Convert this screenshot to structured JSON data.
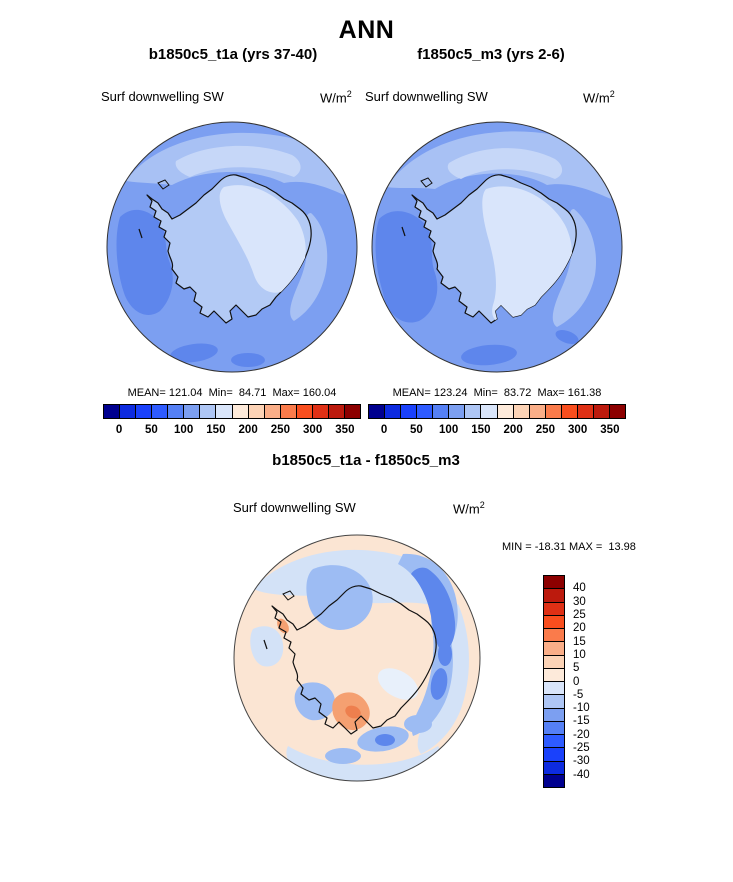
{
  "header": {
    "title": "ANN"
  },
  "units": {
    "base": "W/m",
    "sup": "2"
  },
  "panels": [
    {
      "title": "b1850c5_t1a (yrs 37-40)",
      "field_label": "Surf downwelling SW",
      "stats_text": "MEAN= 121.04  Min=  84.71  Max= 160.04",
      "stats": {
        "mean": 121.04,
        "min": 84.71,
        "max": 160.04
      }
    },
    {
      "title": "f1850c5_m3 (yrs 2-6)",
      "field_label": "Surf downwelling SW",
      "stats_text": "MEAN= 123.24  Min=  83.72  Max= 161.38",
      "stats": {
        "mean": 123.24,
        "min": 83.72,
        "max": 161.38
      }
    }
  ],
  "difference": {
    "title": "b1850c5_t1a - f1850c5_m3",
    "field_label": "Surf downwelling SW",
    "minmax_text": "MIN = -18.31 MAX =  13.98",
    "stats": {
      "min": -18.31,
      "max": 13.98
    }
  },
  "palettes": {
    "sw": [
      "#00008f",
      "#0d2be0",
      "#1a41fb",
      "#2e5bff",
      "#5580f5",
      "#7c9ff1",
      "#aec6f5",
      "#d9e5fa",
      "#fdeada",
      "#fcd3b6",
      "#faae88",
      "#fa7b4b",
      "#f94e1e",
      "#df3015",
      "#bc1a0d",
      "#8c0000"
    ],
    "diff_top_down": [
      "#8c0000",
      "#bc1a0d",
      "#df3015",
      "#f94e1e",
      "#fa7b4b",
      "#faae88",
      "#fcd3b6",
      "#fdeada",
      "#d9e5fa",
      "#aec6f5",
      "#7c9ff1",
      "#5580f5",
      "#2e5bff",
      "#1a41fb",
      "#0d2be0",
      "#00008f"
    ]
  },
  "colorbars": {
    "sw_left": {
      "orientation": "horizontal",
      "palette": "sw",
      "tick_labels": [
        "0",
        "50",
        "100",
        "150",
        "200",
        "250",
        "300",
        "350"
      ],
      "tick_boundaries": [
        1,
        3,
        5,
        7,
        9,
        11,
        13,
        15
      ]
    },
    "sw_right": {
      "orientation": "horizontal",
      "palette": "sw",
      "tick_labels": [
        "0",
        "50",
        "100",
        "150",
        "200",
        "250",
        "300",
        "350"
      ],
      "tick_boundaries": [
        1,
        3,
        5,
        7,
        9,
        11,
        13,
        15
      ]
    },
    "diff": {
      "orientation": "vertical",
      "palette": "diff_top_down",
      "tick_labels": [
        "40",
        "30",
        "25",
        "20",
        "15",
        "10",
        "5",
        "0",
        "-5",
        "-10",
        "-15",
        "-20",
        "-25",
        "-30",
        "-40"
      ],
      "tick_boundaries": [
        1,
        2,
        3,
        4,
        5,
        6,
        7,
        8,
        9,
        10,
        11,
        12,
        13,
        14,
        15
      ]
    }
  },
  "map_colors": {
    "ocean": "#7c9ff1",
    "ocean_light": "#a8c1f4",
    "ocean_lighter": "#c6d7f8",
    "ocean_dark": "#5e86ec",
    "continent": "#b3caf5",
    "continent_light": "#d9e5fb",
    "outline": "#111111",
    "rim": "#333333"
  },
  "diff_colors": {
    "base_peach": "#fbe5d3",
    "light_blue": "#d3e2f7",
    "mid_blue": "#9dbcf3",
    "strong_blue": "#5d87ec",
    "pale_blue": "#e8f0fb",
    "salmon": "#f5a071",
    "orange": "#ee7f4e",
    "outline": "#111111",
    "rim": "#444444"
  },
  "chart_data": [
    {
      "type": "heatmap",
      "subtype": "south-polar-stereographic-map",
      "region": "Antarctica / Southern Ocean",
      "season": "ANN",
      "title": "b1850c5_t1a (yrs 37-40)",
      "variable": "Surf downwelling SW",
      "units": "W/m2",
      "stats": {
        "mean": 121.04,
        "min": 84.71,
        "max": 160.04
      },
      "levels_min": 0,
      "levels_max": 350,
      "level_step": 25,
      "colorbar_ticks": [
        0,
        50,
        100,
        150,
        200,
        250,
        300,
        350
      ],
      "colorbar_orientation": "horizontal",
      "legend_position": "bottom"
    },
    {
      "type": "heatmap",
      "subtype": "south-polar-stereographic-map",
      "region": "Antarctica / Southern Ocean",
      "season": "ANN",
      "title": "f1850c5_m3 (yrs 2-6)",
      "variable": "Surf downwelling SW",
      "units": "W/m2",
      "stats": {
        "mean": 123.24,
        "min": 83.72,
        "max": 161.38
      },
      "levels_min": 0,
      "levels_max": 350,
      "level_step": 25,
      "colorbar_ticks": [
        0,
        50,
        100,
        150,
        200,
        250,
        300,
        350
      ],
      "colorbar_orientation": "horizontal",
      "legend_position": "bottom"
    },
    {
      "type": "heatmap",
      "subtype": "south-polar-stereographic-map",
      "region": "Antarctica / Southern Ocean",
      "title": "b1850c5_t1a - f1850c5_m3",
      "variable": "Surf downwelling SW",
      "units": "W/m2",
      "stats": {
        "min": -18.31,
        "max": 13.98
      },
      "levels": [
        -40,
        -30,
        -25,
        -20,
        -15,
        -10,
        -5,
        0,
        5,
        10,
        15,
        20,
        25,
        30,
        40
      ],
      "colorbar_ticks": [
        40,
        30,
        25,
        20,
        15,
        10,
        5,
        0,
        -5,
        -10,
        -15,
        -20,
        -25,
        -30,
        -40
      ],
      "colorbar_orientation": "vertical",
      "legend_position": "right"
    }
  ]
}
